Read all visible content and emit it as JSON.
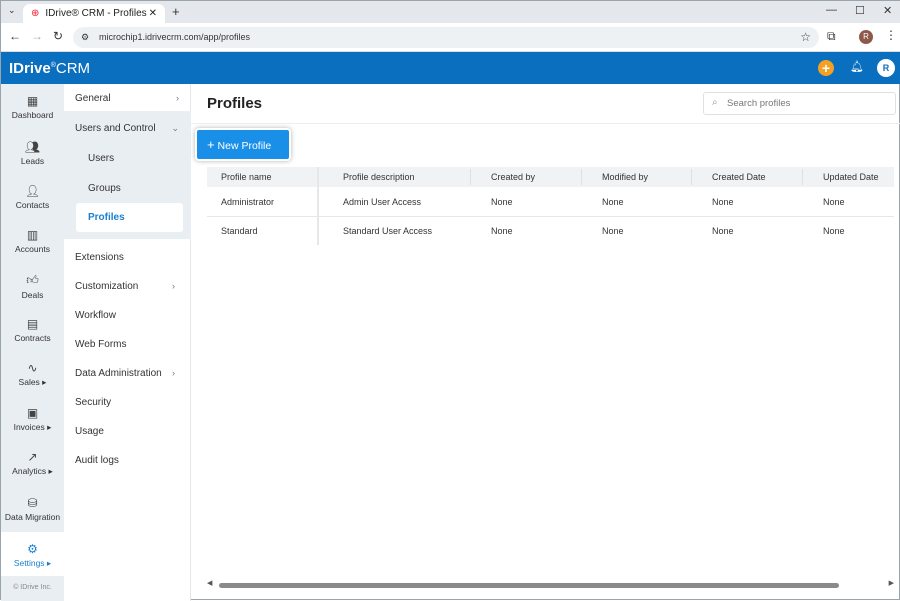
{
  "browser": {
    "tab_title": "IDrive® CRM - Profiles",
    "url": "microchip1.idrivecrm.com/app/profiles",
    "profile_initial": "R"
  },
  "header": {
    "logo": "IDrive® CRM",
    "logo_main": "IDrive",
    "logo_suffix": "CRM",
    "user_initial": "R",
    "brand_color": "#0b6fbf",
    "add_color": "#f5a023"
  },
  "rail": {
    "items": [
      {
        "label": "Dashboard",
        "icon": "dashboard-icon"
      },
      {
        "label": "Leads",
        "icon": "leads-icon"
      },
      {
        "label": "Contacts",
        "icon": "contacts-icon"
      },
      {
        "label": "Accounts",
        "icon": "accounts-icon"
      },
      {
        "label": "Deals",
        "icon": "thumbs-up-icon"
      },
      {
        "label": "Contracts",
        "icon": "contract-icon"
      },
      {
        "label": "Sales ▸",
        "icon": "pulse-icon"
      },
      {
        "label": "Invoices ▸",
        "icon": "invoice-icon"
      },
      {
        "label": "Analytics ▸",
        "icon": "analytics-icon"
      },
      {
        "label": "Data Migration",
        "icon": "database-icon"
      },
      {
        "label": "Settings ▸",
        "icon": "gear-icon"
      }
    ],
    "footer": "© IDrive Inc."
  },
  "submenu": {
    "general": "General",
    "users_and_control": "Users and Control",
    "users": "Users",
    "groups": "Groups",
    "profiles": "Profiles",
    "extensions": "Extensions",
    "customization": "Customization",
    "workflow": "Workflow",
    "web_forms": "Web Forms",
    "data_administration": "Data Administration",
    "security": "Security",
    "usage": "Usage",
    "audit_logs": "Audit logs"
  },
  "main": {
    "title": "Profiles",
    "search_placeholder": "Search profiles",
    "new_button": "New Profile",
    "columns": [
      "Profile name",
      "Profile description",
      "Created by",
      "Modified by",
      "Created Date",
      "Updated Date"
    ],
    "rows": [
      [
        "Administrator",
        "Admin User Access",
        "None",
        "None",
        "None",
        "None"
      ],
      [
        "Standard",
        "Standard User Access",
        "None",
        "None",
        "None",
        "None"
      ]
    ]
  }
}
